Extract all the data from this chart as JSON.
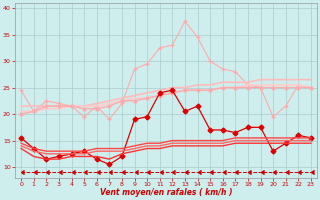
{
  "xlabel": "Vent moyen/en rafales ( km/h )",
  "background_color": "#ceeeed",
  "grid_color": "#aacccc",
  "xlim": [
    -0.5,
    23.5
  ],
  "ylim": [
    8,
    41
  ],
  "yticks": [
    10,
    15,
    20,
    25,
    30,
    35,
    40
  ],
  "xticks": [
    0,
    1,
    2,
    3,
    4,
    5,
    6,
    7,
    8,
    9,
    10,
    11,
    12,
    13,
    14,
    15,
    16,
    17,
    18,
    19,
    20,
    21,
    22,
    23
  ],
  "lines": [
    {
      "x": [
        0,
        1,
        2,
        3,
        4,
        5,
        6,
        7,
        8,
        9,
        10,
        11,
        12,
        13,
        14,
        15,
        16,
        17,
        18,
        19,
        20,
        21,
        22,
        23
      ],
      "y": [
        24.5,
        20.5,
        22.5,
        22.0,
        21.5,
        19.5,
        21.5,
        19.0,
        22.0,
        28.5,
        29.5,
        32.5,
        33.0,
        37.5,
        34.5,
        30.0,
        28.5,
        28.0,
        25.5,
        25.0,
        19.5,
        21.5,
        25.5,
        25.0
      ],
      "color": "#ffaaaa",
      "linewidth": 0.8,
      "marker": "+",
      "markersize": 3,
      "linestyle": "-"
    },
    {
      "x": [
        0,
        1,
        2,
        3,
        4,
        5,
        6,
        7,
        8,
        9,
        10,
        11,
        12,
        13,
        14,
        15,
        16,
        17,
        18,
        19,
        20,
        21,
        22,
        23
      ],
      "y": [
        21.5,
        21.5,
        21.5,
        21.5,
        21.5,
        21.5,
        22.0,
        22.5,
        23.0,
        23.5,
        24.0,
        24.5,
        25.0,
        25.0,
        25.5,
        25.5,
        26.0,
        26.0,
        26.0,
        26.5,
        26.5,
        26.5,
        26.5,
        26.5
      ],
      "color": "#ffbbbb",
      "linewidth": 1.2,
      "marker": null,
      "markersize": 0,
      "linestyle": "-"
    },
    {
      "x": [
        0,
        1,
        2,
        3,
        4,
        5,
        6,
        7,
        8,
        9,
        10,
        11,
        12,
        13,
        14,
        15,
        16,
        17,
        18,
        19,
        20,
        21,
        22,
        23
      ],
      "y": [
        20.5,
        20.5,
        21.0,
        21.0,
        21.5,
        21.5,
        21.5,
        22.0,
        22.5,
        23.0,
        23.0,
        23.5,
        24.0,
        24.5,
        24.5,
        24.5,
        25.0,
        25.0,
        25.5,
        25.5,
        25.5,
        25.5,
        25.5,
        25.0
      ],
      "color": "#ffcccc",
      "linewidth": 1.2,
      "marker": null,
      "markersize": 0,
      "linestyle": "-"
    },
    {
      "x": [
        0,
        1,
        2,
        3,
        4,
        5,
        6,
        7,
        8,
        9,
        10,
        11,
        12,
        13,
        14,
        15,
        16,
        17,
        18,
        19,
        20,
        21,
        22,
        23
      ],
      "y": [
        20.0,
        20.5,
        21.5,
        21.5,
        21.5,
        21.0,
        21.0,
        21.5,
        22.5,
        22.5,
        23.0,
        23.5,
        24.0,
        24.5,
        24.5,
        24.5,
        25.0,
        25.0,
        25.0,
        25.0,
        25.0,
        25.0,
        25.0,
        25.0
      ],
      "color": "#ffaaaa",
      "linewidth": 1.0,
      "marker": "o",
      "markersize": 2,
      "linestyle": "-"
    },
    {
      "x": [
        0,
        1,
        2,
        3,
        4,
        5,
        6,
        7,
        8,
        9,
        10,
        11,
        12,
        13,
        14,
        15,
        16,
        17,
        18,
        19,
        20,
        21,
        22,
        23
      ],
      "y": [
        15.5,
        13.5,
        11.5,
        12.0,
        12.5,
        13.0,
        11.5,
        10.5,
        12.0,
        19.0,
        19.5,
        24.0,
        24.5,
        20.5,
        21.5,
        17.0,
        17.0,
        16.5,
        17.5,
        17.5,
        13.0,
        14.5,
        16.0,
        15.5
      ],
      "color": "#dd0000",
      "linewidth": 0.9,
      "marker": "D",
      "markersize": 2.5,
      "linestyle": "-"
    },
    {
      "x": [
        0,
        1,
        2,
        3,
        4,
        5,
        6,
        7,
        8,
        9,
        10,
        11,
        12,
        13,
        14,
        15,
        16,
        17,
        18,
        19,
        20,
        21,
        22,
        23
      ],
      "y": [
        14.5,
        13.5,
        13.0,
        13.0,
        13.0,
        13.0,
        13.5,
        13.5,
        13.5,
        14.0,
        14.5,
        14.5,
        15.0,
        15.0,
        15.0,
        15.0,
        15.0,
        15.5,
        15.5,
        15.5,
        15.5,
        15.5,
        15.5,
        15.5
      ],
      "color": "#ff4444",
      "linewidth": 1.0,
      "marker": null,
      "markersize": 0,
      "linestyle": "-"
    },
    {
      "x": [
        0,
        1,
        2,
        3,
        4,
        5,
        6,
        7,
        8,
        9,
        10,
        11,
        12,
        13,
        14,
        15,
        16,
        17,
        18,
        19,
        20,
        21,
        22,
        23
      ],
      "y": [
        14.0,
        13.0,
        12.5,
        12.5,
        12.5,
        12.5,
        13.0,
        13.0,
        13.0,
        13.5,
        14.0,
        14.0,
        14.5,
        14.5,
        14.5,
        14.5,
        14.5,
        15.0,
        15.0,
        15.0,
        15.0,
        15.0,
        15.0,
        15.0
      ],
      "color": "#ff6666",
      "linewidth": 1.0,
      "marker": null,
      "markersize": 0,
      "linestyle": "-"
    },
    {
      "x": [
        0,
        1,
        2,
        3,
        4,
        5,
        6,
        7,
        8,
        9,
        10,
        11,
        12,
        13,
        14,
        15,
        16,
        17,
        18,
        19,
        20,
        21,
        22,
        23
      ],
      "y": [
        13.5,
        12.0,
        11.5,
        11.5,
        12.0,
        12.0,
        12.0,
        11.5,
        12.5,
        13.0,
        13.5,
        13.5,
        14.0,
        14.0,
        14.0,
        14.0,
        14.0,
        14.5,
        14.5,
        14.5,
        14.5,
        14.5,
        14.5,
        14.5
      ],
      "color": "#ff3333",
      "linewidth": 1.0,
      "marker": null,
      "markersize": 0,
      "linestyle": "-"
    },
    {
      "x": [
        0,
        1,
        2,
        3,
        4,
        5,
        6,
        7,
        8,
        9,
        10,
        11,
        12,
        13,
        14,
        15,
        16,
        17,
        18,
        19,
        20,
        21,
        22,
        23
      ],
      "y": [
        9.0,
        9.0,
        9.0,
        9.0,
        9.0,
        9.0,
        9.0,
        9.0,
        9.0,
        9.0,
        9.0,
        9.0,
        9.0,
        9.0,
        9.0,
        9.0,
        9.0,
        9.0,
        9.0,
        9.0,
        9.0,
        9.0,
        9.0,
        9.0
      ],
      "color": "#cc0000",
      "linewidth": 0.7,
      "marker": 4,
      "markersize": 3,
      "linestyle": "--"
    }
  ]
}
